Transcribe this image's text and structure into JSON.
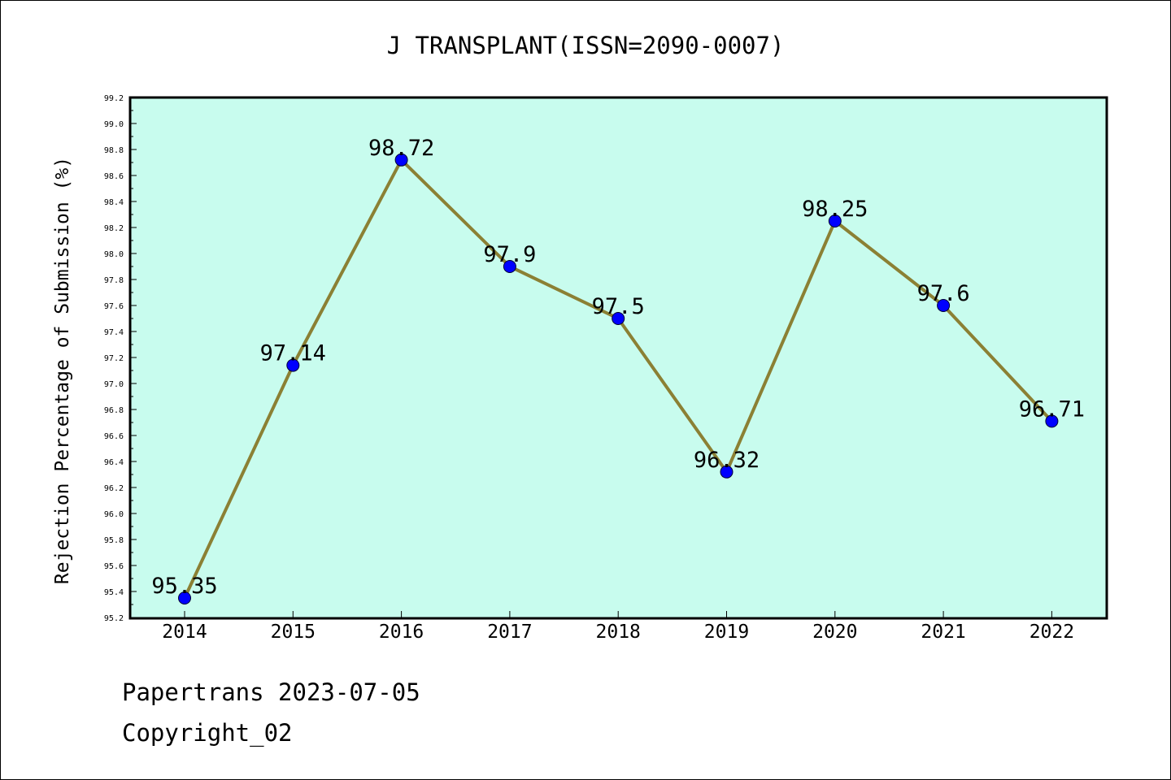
{
  "chart_data": {
    "type": "line",
    "title": "J TRANSPLANT(ISSN=2090-0007)",
    "ylabel": "Rejection Percentage of Submission (%)",
    "xlabel": "",
    "categories": [
      "2014",
      "2015",
      "2016",
      "2017",
      "2018",
      "2019",
      "2020",
      "2021",
      "2022"
    ],
    "values": [
      95.35,
      97.14,
      98.72,
      97.9,
      97.5,
      96.32,
      98.25,
      97.6,
      96.71
    ],
    "data_labels": [
      "95.35",
      "97.14",
      "98.72",
      "97.9",
      "97.5",
      "96.32",
      "98.25",
      "97.6",
      "96.71"
    ],
    "ylim": [
      95.2,
      99.2
    ],
    "yticks": [
      "95.2",
      "95.4",
      "95.6",
      "95.8",
      "96.0",
      "96.2",
      "96.4",
      "96.6",
      "96.8",
      "97.0",
      "97.2",
      "97.4",
      "97.6",
      "97.8",
      "98.0",
      "98.2",
      "98.4",
      "98.6",
      "98.8",
      "99.0",
      "99.2"
    ],
    "colors": {
      "plot_background": "#c8fcee",
      "line": "#8b8034",
      "marker": "#0000ff"
    },
    "grid": false,
    "legend": "none"
  },
  "footer": {
    "line1": "Papertrans 2023-07-05",
    "line2": "Copyright_02"
  }
}
